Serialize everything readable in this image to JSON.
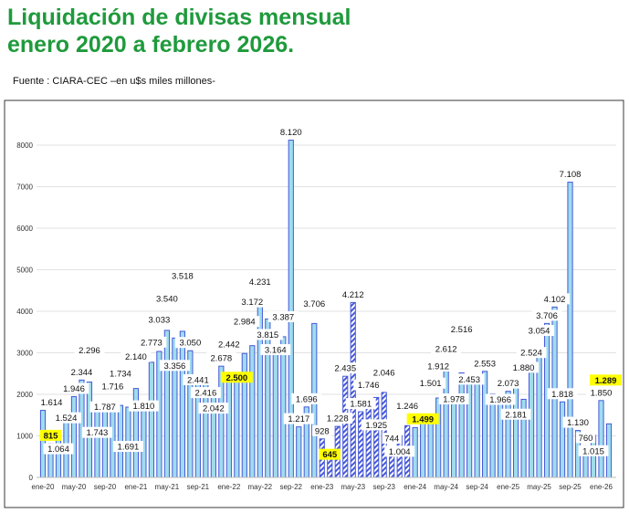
{
  "header": {
    "title_line1": "Liquidación de divisas mensual",
    "title_line2": "enero 2020 a febrero  2026.",
    "source": "Fuente : CIARA-CEC  –en u$s miles millones-"
  },
  "colors": {
    "title": "#1f9a3c",
    "bar_fill": "#9fdcee",
    "bar_stroke": "#4658d8",
    "highlight": "#ffff00"
  },
  "chart_data": {
    "type": "bar",
    "title": "",
    "xlabel": "",
    "ylabel": "",
    "ylim": [
      0,
      8000
    ],
    "yticks": [
      0,
      1000,
      2000,
      3000,
      4000,
      5000,
      6000,
      7000,
      8000
    ],
    "grid": true,
    "categories": [
      "ene-20",
      "feb-20",
      "mar-20",
      "abr-20",
      "may-20",
      "jun-20",
      "jul-20",
      "ago-20",
      "sep-20",
      "oct-20",
      "nov-20",
      "dic-20",
      "ene-21",
      "feb-21",
      "mar-21",
      "abr-21",
      "may-21",
      "jun-21",
      "jul-21",
      "ago-21",
      "sep-21",
      "oct-21",
      "nov-21",
      "dic-21",
      "ene-22",
      "feb-22",
      "mar-22",
      "abr-22",
      "may-22",
      "jun-22",
      "jul-22",
      "ago-22",
      "sep-22",
      "oct-22",
      "nov-22",
      "dic-22",
      "ene-23",
      "feb-23",
      "mar-23",
      "abr-23",
      "may-23",
      "jun-23",
      "jul-23",
      "ago-23",
      "sep-23",
      "oct-23",
      "nov-23",
      "dic-23",
      "ene-24",
      "feb-24",
      "mar-24",
      "abr-24",
      "may-24",
      "jun-24",
      "jul-24",
      "ago-24",
      "sep-24",
      "oct-24",
      "nov-24",
      "dic-24",
      "ene-25",
      "feb-25",
      "mar-25",
      "abr-25",
      "may-25",
      "jun-25",
      "jul-25",
      "ago-25",
      "sep-25",
      "oct-25",
      "nov-25",
      "dic-25",
      "ene-26",
      "feb-26"
    ],
    "xtick_labels": [
      "ene-20",
      "may-20",
      "sep-20",
      "ene-21",
      "may-21",
      "sep-21",
      "ene-22",
      "may-22",
      "sep-22",
      "ene-23",
      "may-23",
      "sep-23",
      "ene-24",
      "may-24",
      "sep-24",
      "ene-25",
      "may-25",
      "sep-25",
      "ene-26"
    ],
    "values": [
      1614,
      815,
      1064,
      1524,
      1946,
      2344,
      2296,
      1743,
      1787,
      1716,
      1734,
      1691,
      2140,
      1810,
      2773,
      3033,
      3540,
      3356,
      3518,
      3050,
      2441,
      2416,
      2042,
      2678,
      2442,
      2500,
      2984,
      3172,
      4231,
      3815,
      3164,
      3387,
      8120,
      1217,
      1696,
      3706,
      928,
      645,
      1228,
      2435,
      4212,
      1581,
      1746,
      1925,
      2046,
      744,
      1004,
      1246,
      1200,
      1499,
      1501,
      1912,
      2612,
      1978,
      2516,
      2453,
      2480,
      2553,
      2010,
      1966,
      2073,
      2181,
      1880,
      2524,
      3054,
      3706,
      4102,
      1818,
      7108,
      1130,
      760,
      1015,
      1850,
      1289
    ],
    "data_labels": [
      "1.614",
      "815",
      "1.064",
      "1.524",
      "1.946",
      "2.344",
      "2.296",
      "1.743",
      "1.787",
      "1.716",
      "1.734",
      "1.691",
      "2.140",
      "1.810",
      "2.773",
      "3.033",
      "3.540",
      "3.356",
      "3.518",
      "3.050",
      "2.441",
      "2.416",
      "2.042",
      "2.678",
      "2.442",
      "2.500",
      "2.984",
      "3.172",
      "4.231",
      "3.815",
      "3.164",
      "3.387",
      "8.120",
      "1.217",
      "1.696",
      "3.706",
      "928",
      "645",
      "1.228",
      "2.435",
      "4.212",
      "1.581",
      "1.746",
      "1.925",
      "2.046",
      "744",
      "1.004",
      "1.246",
      "",
      "1.499",
      "1.501",
      "1.912",
      "2.612",
      "1.978",
      "2.516",
      "2.453",
      "",
      "2.553",
      "",
      "1.966",
      "2.073",
      "2.181",
      "1.880",
      "2.524",
      "3.054",
      "3.706",
      "4.102",
      "1.818",
      "7.108",
      "1.130",
      "760",
      "1.015",
      "1.850",
      "1.289"
    ],
    "highlighted": [
      "feb-20",
      "feb-22",
      "feb-23",
      "feb-24",
      "feb-26"
    ],
    "hatched": [
      "ene-23",
      "feb-23",
      "mar-23",
      "abr-23",
      "may-23",
      "jun-23",
      "jul-23",
      "ago-23",
      "sep-23",
      "oct-23",
      "nov-23",
      "dic-23"
    ]
  }
}
